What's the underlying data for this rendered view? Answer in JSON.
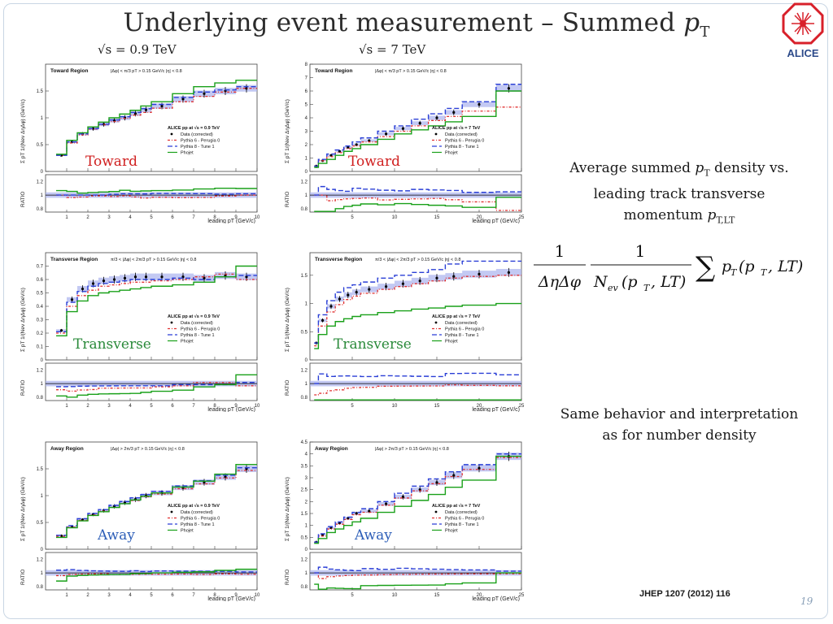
{
  "slide": {
    "title_main": "Underlying event measurement  – Summed ",
    "title_symbol": "p",
    "title_sub": "T",
    "col_left": "√s = 0.9 TeV",
    "col_right": "√s = 7 TeV",
    "logo_text": "ALICE",
    "desc1_a": "Average summed ",
    "desc1_b": "p",
    "desc1_c": "T",
    "desc1_d": " density vs.",
    "desc1_line2": "leading track transverse",
    "desc1_line3a": "momentum ",
    "desc1_line3b": "p",
    "desc1_line3c": "T,LT",
    "desc2_line1": "Same behavior and interpretation",
    "desc2_line2": "as for number density",
    "reference": "JHEP 1207 (2012) 116",
    "slide_number": "19"
  },
  "formula": {
    "one": "1",
    "frac1_den": "ΔηΔφ",
    "frac2_den_a": "N",
    "frac2_den_b": "ev",
    "frac2_den_c": "(p",
    "frac2_den_d": "T",
    "frac2_den_e": ", LT)",
    "sum": "∑",
    "rhs_a": "p",
    "rhs_b": "T",
    "rhs_c": "(p",
    "rhs_d": "T",
    "rhs_e": ", LT)"
  },
  "legend": {
    "data": "Data (corrected)",
    "pythia6": "Pythia 6 - Perugia 0",
    "pythia8": "Pythia 8 - Tune 1",
    "phojet": "Phojet",
    "header_09": "ALICE pp at  √s = 0.9 TeV",
    "header_7": "ALICE pp at  √s = 7 TeV"
  },
  "axis_text": {
    "ylabel": "Σ pT  1/(Nev ΔηΔφ) (GeV/c)",
    "xlabel": "leading pT (GeV/c)",
    "ratio": "RATIO"
  },
  "colors": {
    "data": "#000000",
    "pythia6": "#e03030",
    "pythia8": "#2a3fd6",
    "phojet": "#19a019",
    "band": "#aab2ee",
    "overlay_label_left": "#d02020",
    "overlay_label_blue": "#2e5fb8",
    "overlay_label_green": "#2a8a3a"
  },
  "chart_data": [
    {
      "type": "line",
      "region_title": "Toward Region",
      "cuts": "|Δφ| < π/3     pT > 0.15 GeV/c     |η| < 0.8",
      "energy": "0.9",
      "overlay_label": "Toward",
      "x": [
        0.5,
        1.0,
        1.5,
        2.0,
        2.5,
        3.0,
        3.5,
        4.0,
        4.5,
        5.0,
        6.0,
        7.0,
        8.0,
        9.0
      ],
      "xlim": [
        0,
        10
      ],
      "ylim": [
        0,
        2
      ],
      "yticks": [
        0,
        0.5,
        1,
        1.5
      ],
      "xticks": [
        1,
        2,
        3,
        4,
        5,
        6,
        7,
        8,
        9,
        10
      ],
      "series": [
        {
          "name": "Data (corrected)",
          "values": [
            0.3,
            0.55,
            0.7,
            0.8,
            0.88,
            0.95,
            1.0,
            1.08,
            1.15,
            1.22,
            1.35,
            1.45,
            1.5,
            1.55
          ]
        },
        {
          "name": "Pythia 6 - Perugia 0",
          "values": [
            0.3,
            0.53,
            0.68,
            0.79,
            0.87,
            0.93,
            0.99,
            1.05,
            1.1,
            1.18,
            1.3,
            1.4,
            1.48,
            1.55
          ]
        },
        {
          "name": "Pythia 8 - Tune 1",
          "values": [
            0.3,
            0.55,
            0.7,
            0.8,
            0.88,
            0.96,
            1.02,
            1.1,
            1.17,
            1.25,
            1.38,
            1.48,
            1.52,
            1.58
          ]
        },
        {
          "name": "Phojet",
          "values": [
            0.32,
            0.58,
            0.72,
            0.83,
            0.92,
            1.0,
            1.07,
            1.14,
            1.22,
            1.3,
            1.45,
            1.58,
            1.65,
            1.7
          ]
        }
      ]
    },
    {
      "type": "line",
      "region_title": "Toward Region",
      "cuts": "|Δφ| < π/3     pT > 0.15 GeV/c     |η| < 0.8",
      "energy": "7",
      "overlay_label": "Toward",
      "x": [
        0.5,
        1.0,
        2.0,
        3.0,
        4.0,
        5.0,
        6.0,
        8.0,
        10.0,
        12.0,
        14.0,
        16.0,
        18.0,
        22.0
      ],
      "xlim": [
        0,
        25
      ],
      "ylim": [
        0,
        8
      ],
      "yticks": [
        0,
        1,
        2,
        3,
        4,
        5,
        6,
        7,
        8
      ],
      "xticks": [
        5,
        10,
        15,
        20,
        25
      ],
      "series": [
        {
          "name": "Data (corrected)",
          "values": [
            0.4,
            0.8,
            1.2,
            1.5,
            1.8,
            2.0,
            2.3,
            2.8,
            3.2,
            3.6,
            4.0,
            4.4,
            5.0,
            6.2
          ]
        },
        {
          "name": "Pythia 6 - Perugia 0",
          "values": [
            0.4,
            0.8,
            1.1,
            1.4,
            1.7,
            1.9,
            2.2,
            2.6,
            3.0,
            3.4,
            3.8,
            4.1,
            4.5,
            4.8
          ]
        },
        {
          "name": "Pythia 8 - Tune 1",
          "values": [
            0.4,
            0.9,
            1.3,
            1.6,
            1.9,
            2.2,
            2.5,
            3.0,
            3.4,
            3.9,
            4.3,
            4.7,
            5.2,
            6.5
          ]
        },
        {
          "name": "Phojet",
          "values": [
            0.3,
            0.6,
            0.9,
            1.2,
            1.5,
            1.7,
            2.0,
            2.4,
            2.8,
            3.1,
            3.4,
            3.7,
            4.1,
            6.0
          ]
        }
      ]
    },
    {
      "type": "line",
      "region_title": "Transverse Region",
      "cuts": "π/3 < |Δφ| < 2π/3     pT > 0.15 GeV/c     |η| < 0.8",
      "energy": "0.9",
      "overlay_label": "Transverse",
      "x": [
        0.5,
        1.0,
        1.5,
        2.0,
        2.5,
        3.0,
        3.5,
        4.0,
        4.5,
        5.0,
        6.0,
        7.0,
        8.0,
        9.0
      ],
      "xlim": [
        0,
        10
      ],
      "ylim": [
        0,
        0.8
      ],
      "yticks": [
        0,
        0.1,
        0.2,
        0.3,
        0.4,
        0.5,
        0.6,
        0.7
      ],
      "xticks": [
        1,
        2,
        3,
        4,
        5,
        6,
        7,
        8,
        9,
        10
      ],
      "series": [
        {
          "name": "Data (corrected)",
          "values": [
            0.22,
            0.45,
            0.53,
            0.57,
            0.59,
            0.6,
            0.61,
            0.62,
            0.62,
            0.62,
            0.62,
            0.61,
            0.63,
            0.62
          ]
        },
        {
          "name": "Pythia 6 - Perugia 0",
          "values": [
            0.2,
            0.4,
            0.48,
            0.52,
            0.55,
            0.56,
            0.57,
            0.58,
            0.58,
            0.59,
            0.6,
            0.62,
            0.64,
            0.6
          ]
        },
        {
          "name": "Pythia 8 - Tune 1",
          "values": [
            0.21,
            0.43,
            0.51,
            0.55,
            0.57,
            0.58,
            0.59,
            0.6,
            0.6,
            0.6,
            0.61,
            0.6,
            0.62,
            0.63
          ]
        },
        {
          "name": "Phojet",
          "values": [
            0.18,
            0.36,
            0.44,
            0.48,
            0.5,
            0.51,
            0.52,
            0.53,
            0.54,
            0.55,
            0.56,
            0.58,
            0.62,
            0.7
          ]
        }
      ]
    },
    {
      "type": "line",
      "region_title": "Transverse Region",
      "cuts": "π/3 < |Δφ| < 2π/3     pT > 0.15 GeV/c     |η| < 0.8",
      "energy": "7",
      "overlay_label": "Transverse",
      "x": [
        0.5,
        1.0,
        2.0,
        3.0,
        4.0,
        5.0,
        6.0,
        8.0,
        10.0,
        12.0,
        14.0,
        16.0,
        18.0,
        22.0
      ],
      "xlim": [
        0,
        25
      ],
      "ylim": [
        0,
        1.9
      ],
      "yticks": [
        0,
        0.5,
        1,
        1.5
      ],
      "xticks": [
        5,
        10,
        15,
        20,
        25
      ],
      "series": [
        {
          "name": "Data (corrected)",
          "values": [
            0.3,
            0.7,
            0.95,
            1.08,
            1.15,
            1.2,
            1.25,
            1.3,
            1.35,
            1.4,
            1.45,
            1.48,
            1.52,
            1.55
          ]
        },
        {
          "name": "Pythia 6 - Perugia 0",
          "values": [
            0.25,
            0.6,
            0.85,
            0.98,
            1.07,
            1.13,
            1.18,
            1.25,
            1.3,
            1.35,
            1.4,
            1.45,
            1.48,
            1.5
          ]
        },
        {
          "name": "Pythia 8 - Tune 1",
          "values": [
            0.3,
            0.8,
            1.05,
            1.2,
            1.28,
            1.33,
            1.38,
            1.45,
            1.5,
            1.55,
            1.6,
            1.7,
            1.75,
            1.75
          ]
        },
        {
          "name": "Phojet",
          "values": [
            0.2,
            0.45,
            0.6,
            0.68,
            0.73,
            0.77,
            0.8,
            0.84,
            0.87,
            0.9,
            0.92,
            0.95,
            0.97,
            1.0
          ]
        }
      ]
    },
    {
      "type": "line",
      "region_title": "Away Region",
      "cuts": "|Δφ| > 2π/3     pT > 0.15 GeV/c     |η| < 0.8",
      "energy": "0.9",
      "overlay_label": "Away",
      "x": [
        0.5,
        1.0,
        1.5,
        2.0,
        2.5,
        3.0,
        3.5,
        4.0,
        4.5,
        5.0,
        6.0,
        7.0,
        8.0,
        9.0
      ],
      "xlim": [
        0,
        10
      ],
      "ylim": [
        0,
        2
      ],
      "yticks": [
        0,
        0.5,
        1,
        1.5
      ],
      "xticks": [
        1,
        2,
        3,
        4,
        5,
        6,
        7,
        8,
        9,
        10
      ],
      "series": [
        {
          "name": "Data (corrected)",
          "values": [
            0.25,
            0.42,
            0.55,
            0.65,
            0.72,
            0.8,
            0.87,
            0.93,
            1.0,
            1.05,
            1.15,
            1.25,
            1.35,
            1.5
          ]
        },
        {
          "name": "Pythia 6 - Perugia 0",
          "values": [
            0.24,
            0.41,
            0.54,
            0.64,
            0.71,
            0.78,
            0.85,
            0.91,
            0.98,
            1.03,
            1.13,
            1.22,
            1.33,
            1.47
          ]
        },
        {
          "name": "Pythia 8 - Tune 1",
          "values": [
            0.26,
            0.44,
            0.57,
            0.67,
            0.74,
            0.82,
            0.89,
            0.96,
            1.02,
            1.08,
            1.18,
            1.28,
            1.38,
            1.52
          ]
        },
        {
          "name": "Phojet",
          "values": [
            0.22,
            0.4,
            0.53,
            0.63,
            0.7,
            0.78,
            0.85,
            0.92,
            0.99,
            1.05,
            1.16,
            1.27,
            1.4,
            1.58
          ]
        }
      ]
    },
    {
      "type": "line",
      "region_title": "Away Region",
      "cuts": "|Δφ| > 2π/3     pT > 0.15 GeV/c     |η| < 0.8",
      "energy": "7",
      "overlay_label": "Away",
      "x": [
        0.5,
        1.0,
        2.0,
        3.0,
        4.0,
        5.0,
        6.0,
        8.0,
        10.0,
        12.0,
        14.0,
        16.0,
        18.0,
        22.0
      ],
      "xlim": [
        0,
        25
      ],
      "ylim": [
        0,
        4.5
      ],
      "yticks": [
        0,
        0.5,
        1,
        1.5,
        2,
        2.5,
        3,
        3.5,
        4,
        4.5
      ],
      "xticks": [
        5,
        10,
        15,
        20,
        25
      ],
      "series": [
        {
          "name": "Data (corrected)",
          "values": [
            0.3,
            0.6,
            0.9,
            1.1,
            1.3,
            1.5,
            1.6,
            1.9,
            2.2,
            2.5,
            2.8,
            3.1,
            3.4,
            3.9
          ]
        },
        {
          "name": "Pythia 6 - Perugia 0",
          "values": [
            0.3,
            0.55,
            0.85,
            1.05,
            1.25,
            1.45,
            1.55,
            1.85,
            2.15,
            2.45,
            2.75,
            3.05,
            3.35,
            3.85
          ]
        },
        {
          "name": "Pythia 8 - Tune 1",
          "values": [
            0.3,
            0.65,
            0.95,
            1.15,
            1.35,
            1.55,
            1.7,
            2.0,
            2.35,
            2.65,
            2.95,
            3.25,
            3.55,
            4.0
          ]
        },
        {
          "name": "Phojet",
          "values": [
            0.25,
            0.45,
            0.7,
            0.85,
            1.0,
            1.15,
            1.3,
            1.55,
            1.8,
            2.05,
            2.3,
            2.6,
            2.9,
            3.9
          ]
        }
      ]
    }
  ]
}
